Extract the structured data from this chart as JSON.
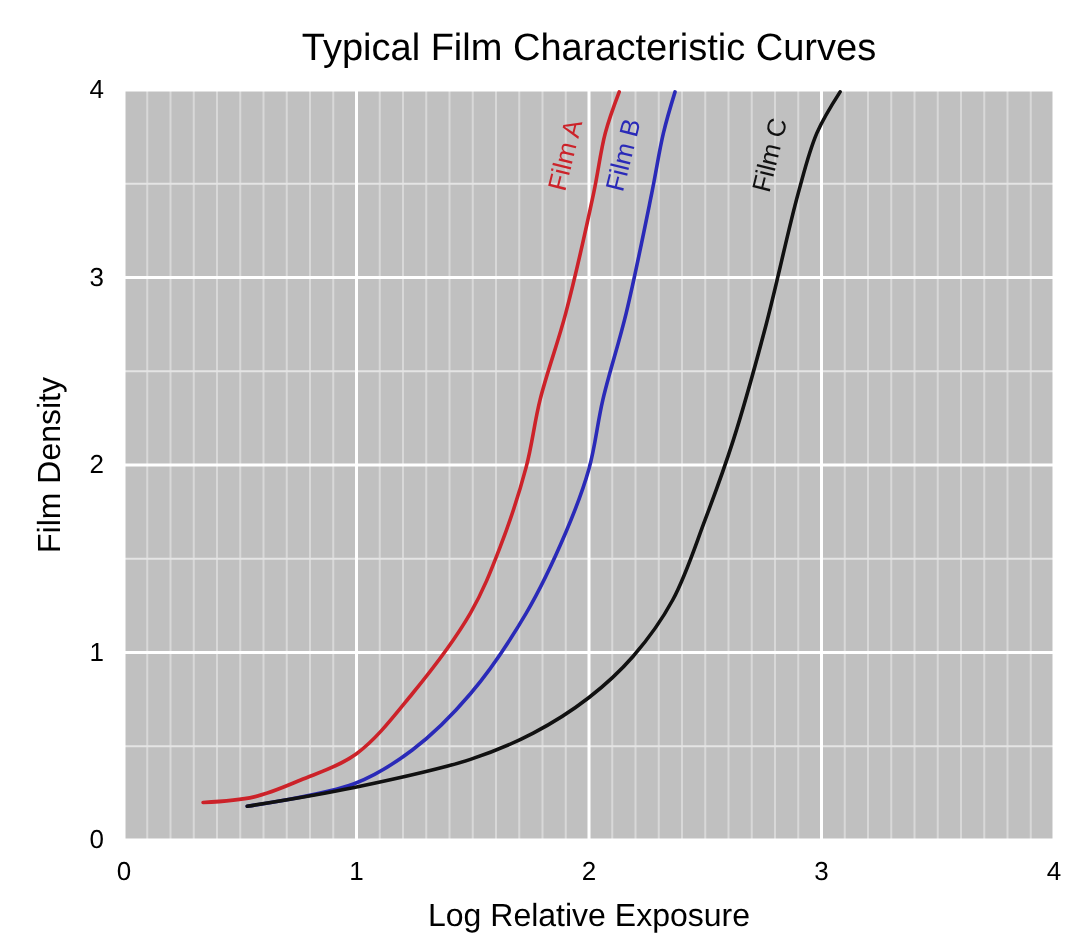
{
  "chart_data": {
    "type": "line",
    "title": "Typical Film Characteristic Curves",
    "xlabel": "Log Relative Exposure",
    "ylabel": "Film Density",
    "xlim": [
      0,
      4
    ],
    "ylim": [
      0,
      4
    ],
    "xticks": [
      0,
      1,
      2,
      3,
      4
    ],
    "yticks": [
      0,
      1,
      2,
      3,
      4
    ],
    "grid": true,
    "marker": "none",
    "line_style": "solid",
    "series": [
      {
        "name": "Film A",
        "color": "#cc2229",
        "x": [
          0.34,
          0.56,
          0.76,
          1.0,
          1.24,
          1.49,
          1.62,
          1.73,
          1.79,
          1.9,
          2.02,
          2.07,
          2.13
        ],
        "values": [
          0.2,
          0.23,
          0.32,
          0.46,
          0.78,
          1.21,
          1.57,
          1.99,
          2.35,
          2.81,
          3.45,
          3.77,
          3.99
        ]
      },
      {
        "name": "Film B",
        "color": "#2a2ab8",
        "x": [
          0.53,
          0.99,
          1.24,
          1.49,
          1.73,
          1.9,
          2.0,
          2.06,
          2.16,
          2.27,
          2.32,
          2.37
        ],
        "values": [
          0.18,
          0.3,
          0.48,
          0.78,
          1.21,
          1.64,
          1.98,
          2.35,
          2.81,
          3.45,
          3.77,
          3.99
        ]
      },
      {
        "name": "Film C",
        "color": "#111111",
        "x": [
          0.53,
          0.99,
          1.49,
          1.76,
          2.0,
          2.19,
          2.36,
          2.5,
          2.62,
          2.76,
          2.9,
          2.98,
          3.08
        ],
        "values": [
          0.18,
          0.28,
          0.43,
          0.57,
          0.76,
          0.98,
          1.28,
          1.71,
          2.13,
          2.74,
          3.45,
          3.77,
          3.99
        ]
      }
    ]
  }
}
